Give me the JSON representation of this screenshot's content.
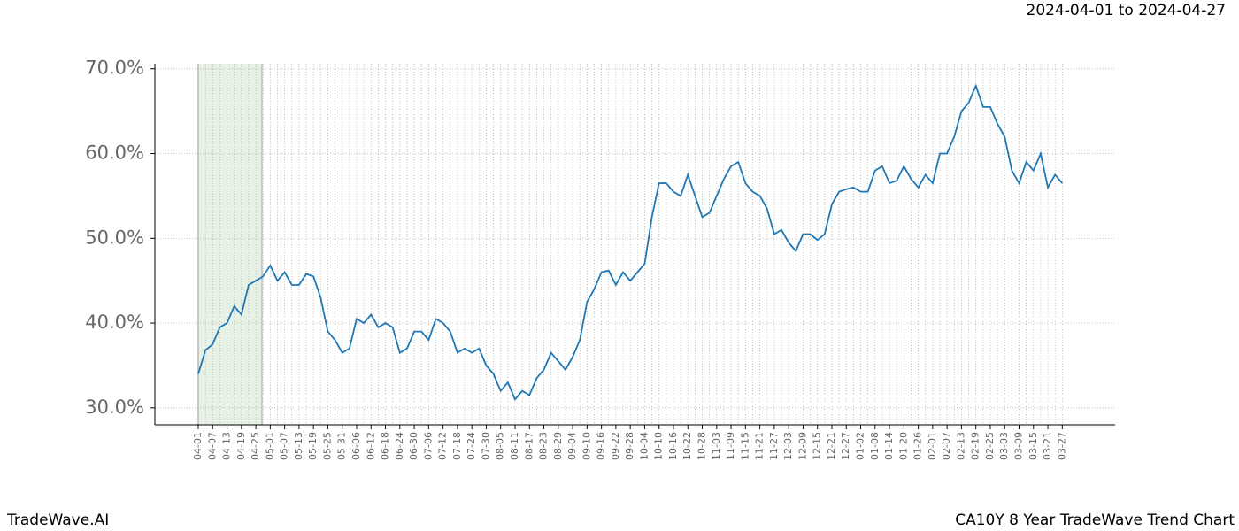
{
  "chart_data": {
    "type": "line",
    "date_range": "2024-04-01 to 2024-04-27",
    "brand": "TradeWave.AI",
    "title": "CA10Y 8 Year TradeWave Trend Chart",
    "categories": [
      "04-01",
      null,
      "04-07",
      null,
      "04-13",
      null,
      "04-19",
      null,
      "04-25",
      null,
      "05-01",
      null,
      "05-07",
      null,
      "05-13",
      null,
      "05-19",
      null,
      "05-25",
      null,
      "05-31",
      null,
      "06-06",
      null,
      "06-12",
      null,
      "06-18",
      null,
      "06-24",
      null,
      "06-30",
      null,
      "07-06",
      null,
      "07-12",
      null,
      "07-18",
      null,
      "07-24",
      null,
      "07-30",
      null,
      "08-05",
      null,
      "08-11",
      null,
      "08-17",
      null,
      "08-23",
      null,
      "08-29",
      null,
      "09-04",
      null,
      "09-10",
      null,
      "09-16",
      null,
      "09-22",
      null,
      "09-28",
      null,
      "10-04",
      null,
      "10-10",
      null,
      "10-16",
      null,
      "10-22",
      null,
      "10-28",
      null,
      "11-03",
      null,
      "11-09",
      null,
      "11-15",
      null,
      "11-21",
      null,
      "11-27",
      null,
      "12-03",
      null,
      "12-09",
      null,
      "12-15",
      null,
      "12-21",
      null,
      "12-27",
      null,
      "01-02",
      null,
      "01-08",
      null,
      "01-14",
      null,
      "01-20",
      null,
      "01-26",
      null,
      "02-01",
      null,
      "02-07",
      null,
      "02-13",
      null,
      "02-19",
      null,
      "02-25",
      null,
      "03-03",
      null,
      "03-09",
      null,
      "03-15",
      null,
      "03-21",
      null,
      "03-27"
    ],
    "series": [
      {
        "name": "CA10Y",
        "color": "#1f77b4",
        "values": [
          34.0,
          36.8,
          37.5,
          39.5,
          40.0,
          42.0,
          41.0,
          44.5,
          45.0,
          45.5,
          46.8,
          45.0,
          46.0,
          44.5,
          44.5,
          45.8,
          45.5,
          43.0,
          39.0,
          38.0,
          36.5,
          37.0,
          40.5,
          40.0,
          41.0,
          39.5,
          40.0,
          39.5,
          36.5,
          37.0,
          39.0,
          39.0,
          38.0,
          40.5,
          40.0,
          39.0,
          36.5,
          37.0,
          36.5,
          37.0,
          35.0,
          34.0,
          32.0,
          33.0,
          31.0,
          32.0,
          31.5,
          33.5,
          34.5,
          36.5,
          35.5,
          34.5,
          36.0,
          38.0,
          42.5,
          44.0,
          46.0,
          46.2,
          44.5,
          46.0,
          45.0,
          46.0,
          47.0,
          52.5,
          56.5,
          56.5,
          55.5,
          55.0,
          57.5,
          55.0,
          52.5,
          53.0,
          55.0,
          57.0,
          58.5,
          59.0,
          56.5,
          55.5,
          55.0,
          53.5,
          50.5,
          51.0,
          49.5,
          48.5,
          50.5,
          50.5,
          49.8,
          50.5,
          54.0,
          55.5,
          55.8,
          56.0,
          55.5,
          55.5,
          58.0,
          58.5,
          56.5,
          56.8,
          58.5,
          57.0,
          56.0,
          57.5,
          56.5,
          60.0,
          60.0,
          62.0,
          65.0,
          66.0,
          68.0,
          65.5,
          65.5,
          63.5,
          62.0,
          58.0,
          56.5,
          59.0,
          58.0,
          60.0,
          56.0,
          57.5,
          56.5
        ]
      }
    ],
    "ylim": [
      28.0,
      70.6
    ],
    "yticks": [
      {
        "value": 30,
        "label": "30.0%"
      },
      {
        "value": 40,
        "label": "40.0%"
      },
      {
        "value": 50,
        "label": "50.0%"
      },
      {
        "value": 60,
        "label": "60.0%"
      },
      {
        "value": 70,
        "label": "70.0%"
      }
    ],
    "grid": true
  }
}
